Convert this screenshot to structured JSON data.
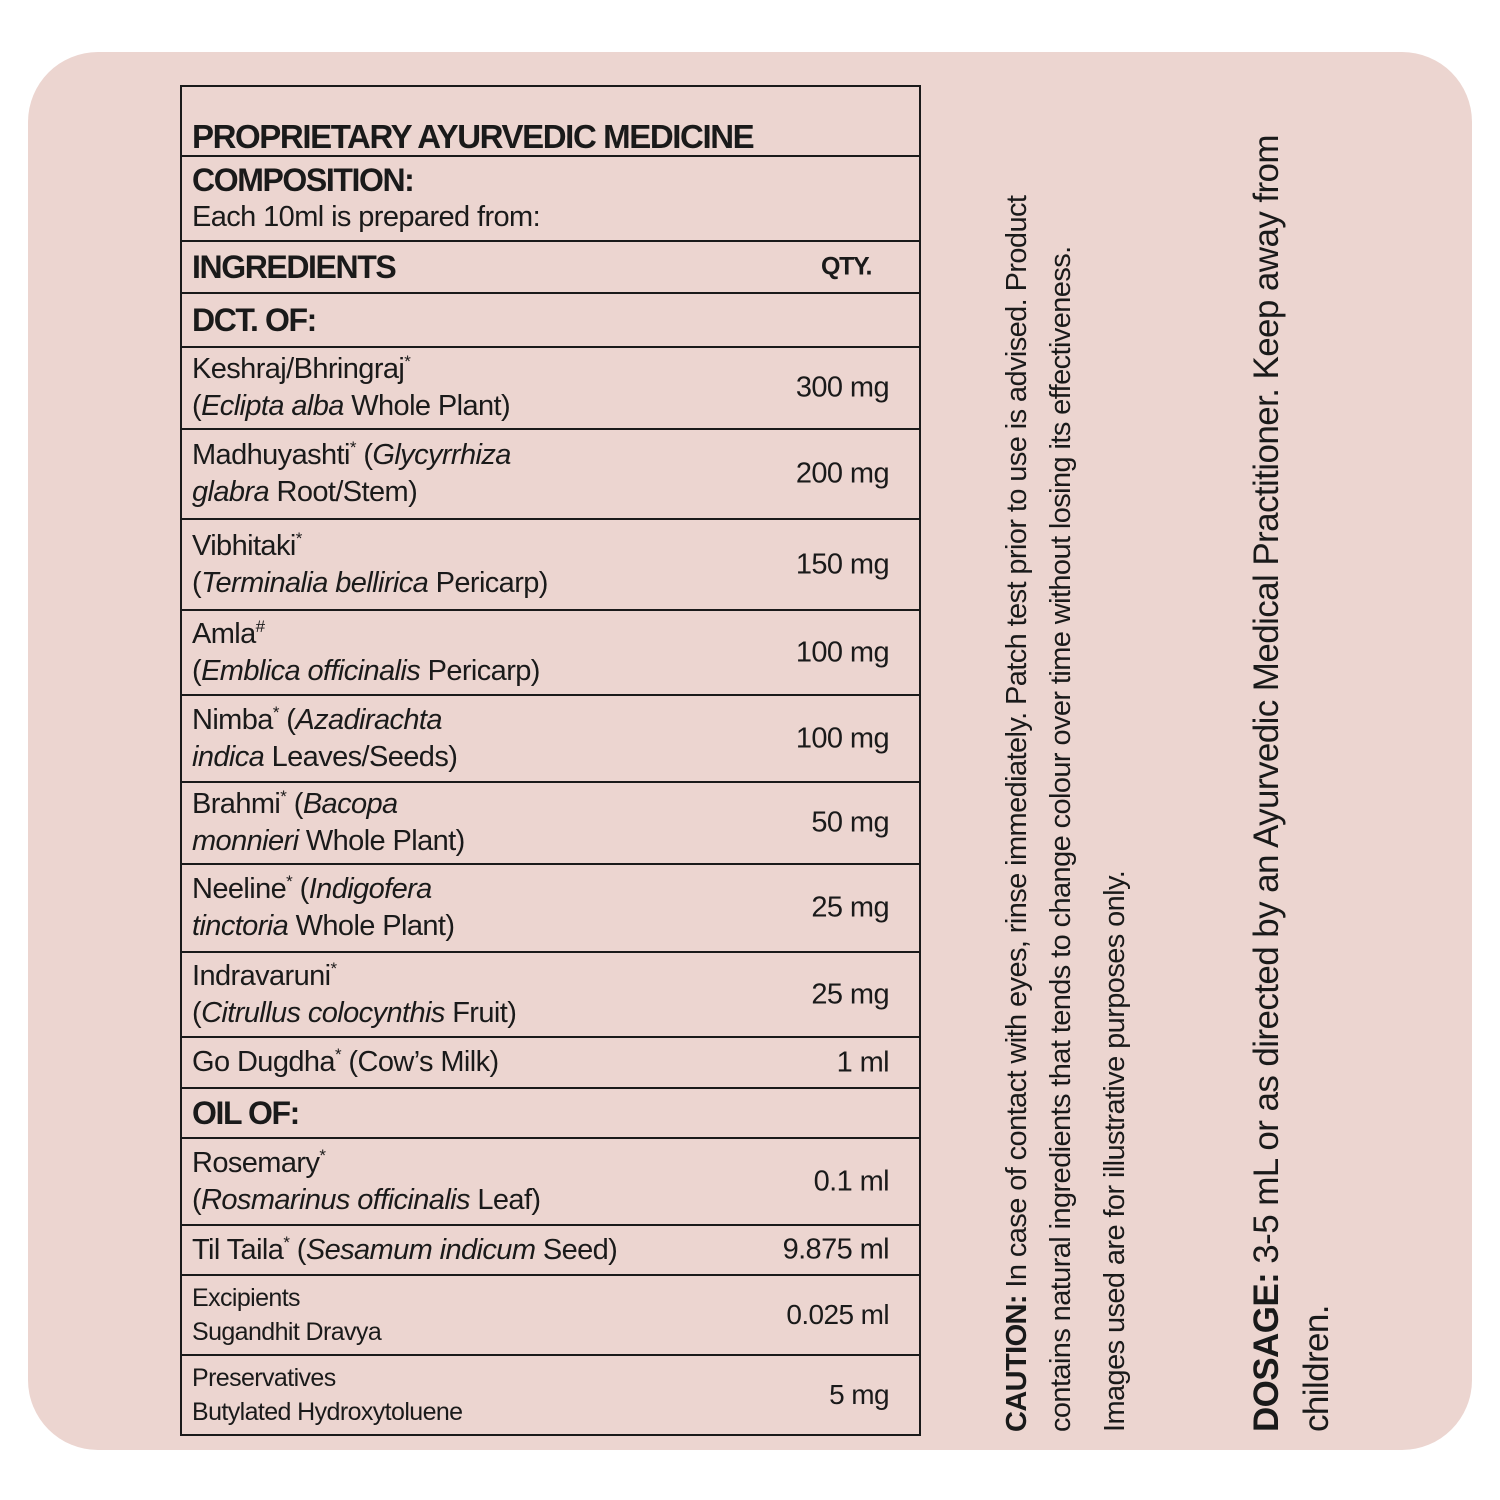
{
  "header": {
    "title": "PROPRIETARY AYURVEDIC MEDICINE",
    "composition_label": "COMPOSITION:",
    "composition_text": "Each 10ml is prepared from:",
    "ingredients_label": "INGREDIENTS",
    "qty_label": "QTY."
  },
  "sections": [
    {
      "label": "DCT. OF:",
      "items": [
        {
          "lines": [
            [
              {
                "text": "Keshraj/Bhringraj"
              },
              {
                "text": "*",
                "style": "sup"
              }
            ],
            [
              {
                "text": "("
              },
              {
                "text": "Eclipta alba",
                "style": "i"
              },
              {
                "text": " Whole Plant)"
              }
            ]
          ],
          "qty": "300 mg"
        },
        {
          "lines": [
            [
              {
                "text": "Madhuyashti"
              },
              {
                "text": "*",
                "style": "sup"
              },
              {
                "text": " ("
              },
              {
                "text": "Glycyrrhiza",
                "style": "i"
              }
            ],
            [
              {
                "text": "glabra",
                "style": "i"
              },
              {
                "text": " Root/Stem)"
              }
            ]
          ],
          "qty": "200 mg"
        },
        {
          "lines": [
            [
              {
                "text": "Vibhitaki"
              },
              {
                "text": "*",
                "style": "sup"
              }
            ],
            [
              {
                "text": "("
              },
              {
                "text": "Terminalia bellirica",
                "style": "i"
              },
              {
                "text": " Pericarp)"
              }
            ]
          ],
          "qty": "150 mg"
        },
        {
          "lines": [
            [
              {
                "text": "Amla"
              },
              {
                "text": "#",
                "style": "sup"
              }
            ],
            [
              {
                "text": "("
              },
              {
                "text": "Emblica officinalis",
                "style": "i"
              },
              {
                "text": " Pericarp)"
              }
            ]
          ],
          "qty": "100 mg"
        },
        {
          "lines": [
            [
              {
                "text": "Nimba"
              },
              {
                "text": "*",
                "style": "sup"
              },
              {
                "text": " ("
              },
              {
                "text": "Azadirachta",
                "style": "i"
              }
            ],
            [
              {
                "text": "indica",
                "style": "i"
              },
              {
                "text": " Leaves/Seeds)"
              }
            ]
          ],
          "qty": "100 mg"
        },
        {
          "lines": [
            [
              {
                "text": "Brahmi"
              },
              {
                "text": "*",
                "style": "sup"
              },
              {
                "text": " ("
              },
              {
                "text": "Bacopa",
                "style": "i"
              }
            ],
            [
              {
                "text": "monnieri",
                "style": "i"
              },
              {
                "text": " Whole Plant)"
              }
            ]
          ],
          "qty": "50 mg"
        },
        {
          "lines": [
            [
              {
                "text": "Neeline"
              },
              {
                "text": "*",
                "style": "sup"
              },
              {
                "text": " ("
              },
              {
                "text": "Indigofera",
                "style": "i"
              }
            ],
            [
              {
                "text": "tinctoria",
                "style": "i"
              },
              {
                "text": " Whole Plant)"
              }
            ]
          ],
          "qty": "25 mg"
        },
        {
          "lines": [
            [
              {
                "text": "Indravaruni"
              },
              {
                "text": "*",
                "style": "sup"
              }
            ],
            [
              {
                "text": "("
              },
              {
                "text": "Citrullus colocynthis",
                "style": "i"
              },
              {
                "text": " Fruit)"
              }
            ]
          ],
          "qty": "25 mg"
        },
        {
          "lines": [
            [
              {
                "text": "Go Dugdha"
              },
              {
                "text": "*",
                "style": "sup"
              },
              {
                "text": " (Cow’s Milk)"
              }
            ]
          ],
          "qty": "1 ml"
        }
      ]
    },
    {
      "label": "OIL OF:",
      "items": [
        {
          "lines": [
            [
              {
                "text": "Rosemary"
              },
              {
                "text": "*",
                "style": "sup"
              }
            ],
            [
              {
                "text": "("
              },
              {
                "text": "Rosmarinus officinalis",
                "style": "i"
              },
              {
                "text": " Leaf)"
              }
            ]
          ],
          "qty": "0.1 ml"
        },
        {
          "lines": [
            [
              {
                "text": "Til Taila"
              },
              {
                "text": "*",
                "style": "sup"
              },
              {
                "text": " ("
              },
              {
                "text": "Sesamum indicum",
                "style": "i"
              },
              {
                "text": " Seed)"
              }
            ]
          ],
          "qty": "9.875 ml"
        }
      ]
    }
  ],
  "others": [
    {
      "lines": [
        "Excipients",
        "Sugandhit Dravya"
      ],
      "qty": "0.025 ml"
    },
    {
      "lines": [
        "Preservatives",
        "Butylated Hydroxytoluene"
      ],
      "qty": "5 mg"
    }
  ],
  "caution": {
    "label": "CAUTION:",
    "text": "In case of contact with eyes, rinse immediately. Patch test prior to use is advised. Product contains natural ingredients that tends to change colour over time without losing its effectiveness."
  },
  "note": "Images used are for illustrative purposes only.",
  "dosage": {
    "label": "DOSAGE:",
    "text": "3-5 mL or as directed by an Ayurvedic Medical Practitioner. Keep away from children."
  }
}
